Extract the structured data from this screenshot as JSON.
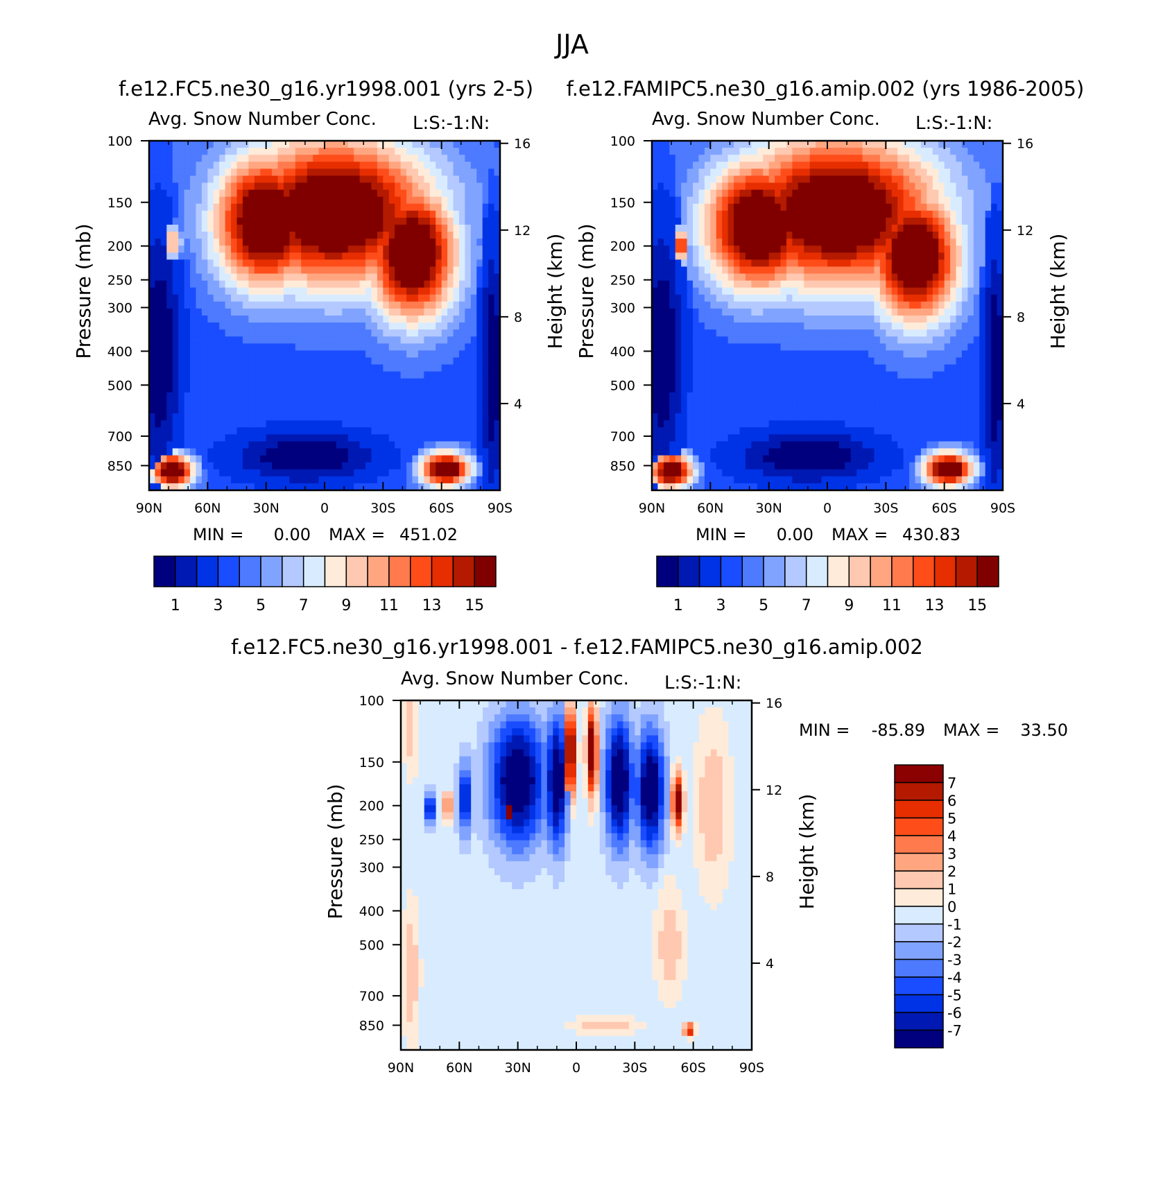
{
  "page_title": "JJA",
  "colors": {
    "abs_scale": [
      "#00007f",
      "#0019b3",
      "#0033e6",
      "#1a4dff",
      "#4d7aff",
      "#80a3ff",
      "#b3c9ff",
      "#d9ecff",
      "#ffebd9",
      "#ffc8b0",
      "#ffa680",
      "#ff7a4d",
      "#ff4d1a",
      "#e62e00",
      "#b31a00",
      "#800000"
    ],
    "diff_scale": [
      "#00007f",
      "#0019b3",
      "#0033e6",
      "#1a4dff",
      "#4d7aff",
      "#80a3ff",
      "#b3c9ff",
      "#d9ecff",
      "#ffebd9",
      "#ffc8b0",
      "#ffa680",
      "#ff7a4d",
      "#ff4d1a",
      "#e62e00",
      "#b31a00",
      "#8b0000"
    ],
    "axis": "#000000"
  },
  "chart_data": [
    {
      "id": "panel1",
      "type": "heatmap",
      "case_title": "f.e12.FC5.ne30_g16.yr1998.001 (yrs 2-5)",
      "variable": "Avg. Snow Number Conc.",
      "level_tag": "L:S:-1:N:",
      "xlabel": "",
      "ylabel": "Pressure (mb)",
      "y2label": "Height (km)",
      "x_ticks": [
        "90N",
        "60N",
        "30N",
        "0",
        "30S",
        "60S",
        "90S"
      ],
      "y_ticks": [
        "100",
        "150",
        "200",
        "250",
        "300",
        "400",
        "500",
        "700",
        "850"
      ],
      "y_tick_values": [
        100,
        150,
        200,
        250,
        300,
        400,
        500,
        700,
        850
      ],
      "y2_ticks": [
        "16",
        "12",
        "8",
        "4"
      ],
      "y2_tick_values": [
        16,
        12,
        8,
        4
      ],
      "x_range": [
        90,
        -90
      ],
      "y_range": [
        100,
        1000
      ],
      "min_label": "MIN =",
      "min_value": "0.00",
      "max_label": "MAX =",
      "max_value": "451.02",
      "colorbar_labels": [
        "1",
        "3",
        "5",
        "7",
        "9",
        "11",
        "13",
        "15"
      ],
      "field": {
        "blobs": [
          {
            "lat": -5,
            "p": 160,
            "lat_width": 58,
            "p_width": 90,
            "level": 15
          },
          {
            "lat": 30,
            "p": 170,
            "lat_width": 30,
            "p_width": 85,
            "level": 15
          },
          {
            "lat": -45,
            "p": 210,
            "lat_width": 26,
            "p_width": 105,
            "level": 15
          },
          {
            "lat": -62,
            "p": 870,
            "lat_width": 14,
            "p_width": 110,
            "level": 15
          },
          {
            "lat": 78,
            "p": 880,
            "lat_width": 12,
            "p_width": 110,
            "level": 15
          },
          {
            "lat": 78,
            "p": 195,
            "lat_width": 5,
            "p_width": 25,
            "level": 9
          }
        ],
        "background": [
          {
            "lat": 85,
            "p": 400,
            "lat_width": 12,
            "p_width": 350,
            "level": 0
          },
          {
            "lat": 10,
            "p": 800,
            "lat_width": 40,
            "p_width": 150,
            "level": 0
          },
          {
            "lat": -86,
            "p": 450,
            "lat_width": 6,
            "p_width": 400,
            "level": 0
          }
        ],
        "base_level": 3
      }
    },
    {
      "id": "panel2",
      "type": "heatmap",
      "case_title": "f.e12.FAMIPC5.ne30_g16.amip.002 (yrs 1986-2005)",
      "variable": "Avg. Snow Number Conc.",
      "level_tag": "L:S:-1:N:",
      "xlabel": "",
      "ylabel": "Pressure (mb)",
      "y2label": "Height (km)",
      "x_ticks": [
        "90N",
        "60N",
        "30N",
        "0",
        "30S",
        "60S",
        "90S"
      ],
      "y_ticks": [
        "100",
        "150",
        "200",
        "250",
        "300",
        "400",
        "500",
        "700",
        "850"
      ],
      "y_tick_values": [
        100,
        150,
        200,
        250,
        300,
        400,
        500,
        700,
        850
      ],
      "y2_ticks": [
        "16",
        "12",
        "8",
        "4"
      ],
      "y2_tick_values": [
        16,
        12,
        8,
        4
      ],
      "x_range": [
        90,
        -90
      ],
      "y_range": [
        100,
        1000
      ],
      "min_label": "MIN =",
      "min_value": "0.00",
      "max_label": "MAX =",
      "max_value": "430.83",
      "colorbar_labels": [
        "1",
        "3",
        "5",
        "7",
        "9",
        "11",
        "13",
        "15"
      ],
      "field": {
        "blobs": [
          {
            "lat": -5,
            "p": 160,
            "lat_width": 60,
            "p_width": 92,
            "level": 15
          },
          {
            "lat": 35,
            "p": 175,
            "lat_width": 32,
            "p_width": 85,
            "level": 15
          },
          {
            "lat": -45,
            "p": 215,
            "lat_width": 26,
            "p_width": 105,
            "level": 15
          },
          {
            "lat": -62,
            "p": 870,
            "lat_width": 14,
            "p_width": 110,
            "level": 15
          },
          {
            "lat": 80,
            "p": 880,
            "lat_width": 12,
            "p_width": 110,
            "level": 15
          },
          {
            "lat": 75,
            "p": 200,
            "lat_width": 4,
            "p_width": 25,
            "level": 12
          }
        ],
        "background": [
          {
            "lat": 85,
            "p": 400,
            "lat_width": 12,
            "p_width": 350,
            "level": 0
          },
          {
            "lat": 10,
            "p": 800,
            "lat_width": 40,
            "p_width": 150,
            "level": 0
          },
          {
            "lat": -86,
            "p": 450,
            "lat_width": 6,
            "p_width": 400,
            "level": 0
          }
        ],
        "base_level": 3
      }
    },
    {
      "id": "panel3",
      "type": "heatmap",
      "case_title": "f.e12.FC5.ne30_g16.yr1998.001 - f.e12.FAMIPC5.ne30_g16.amip.002",
      "variable": "Avg. Snow Number Conc.",
      "level_tag": "L:S:-1:N:",
      "xlabel": "",
      "ylabel": "Pressure (mb)",
      "y2label": "Height (km)",
      "x_ticks": [
        "90N",
        "60N",
        "30N",
        "0",
        "30S",
        "60S",
        "90S"
      ],
      "y_ticks": [
        "100",
        "150",
        "200",
        "250",
        "300",
        "400",
        "500",
        "700",
        "850"
      ],
      "y_tick_values": [
        100,
        150,
        200,
        250,
        300,
        400,
        500,
        700,
        850
      ],
      "y2_ticks": [
        "16",
        "12",
        "8",
        "4"
      ],
      "y2_tick_values": [
        16,
        12,
        8,
        4
      ],
      "x_range": [
        90,
        -90
      ],
      "y_range": [
        100,
        1000
      ],
      "min_label": "MIN =",
      "min_value": "-85.89",
      "max_label": "MAX =",
      "max_value": "33.50",
      "colorbar_labels": [
        "7",
        "6",
        "5",
        "4",
        "3",
        "2",
        "1",
        "0",
        "-1",
        "-2",
        "-3",
        "-4",
        "-5",
        "-6",
        "-7"
      ],
      "field": {
        "blobs": [
          {
            "lat": 30,
            "p": 170,
            "lat_width": 16,
            "p_width": 80,
            "level": -8
          },
          {
            "lat": 10,
            "p": 170,
            "lat_width": 6,
            "p_width": 80,
            "level": -8
          },
          {
            "lat": -22,
            "p": 170,
            "lat_width": 8,
            "p_width": 80,
            "level": -8
          },
          {
            "lat": -38,
            "p": 180,
            "lat_width": 8,
            "p_width": 80,
            "level": -8
          },
          {
            "lat": 57,
            "p": 190,
            "lat_width": 4,
            "p_width": 50,
            "level": -6
          },
          {
            "lat": 75,
            "p": 205,
            "lat_width": 3,
            "p_width": 25,
            "level": -6
          },
          {
            "lat": 3,
            "p": 140,
            "lat_width": 3,
            "p_width": 45,
            "level": 7
          },
          {
            "lat": -8,
            "p": 140,
            "lat_width": 3,
            "p_width": 45,
            "level": 7
          },
          {
            "lat": -52,
            "p": 195,
            "lat_width": 3,
            "p_width": 40,
            "level": 7
          },
          {
            "lat": 66,
            "p": 200,
            "lat_width": 2,
            "p_width": 20,
            "level": 4
          },
          {
            "lat": 35,
            "p": 210,
            "lat_width": 2,
            "p_width": 20,
            "level": 7
          },
          {
            "lat": -58,
            "p": 880,
            "lat_width": 3,
            "p_width": 40,
            "level": 5
          }
        ],
        "background": [
          {
            "lat": 85,
            "p": 120,
            "lat_width": 4,
            "p_width": 40,
            "level": 1
          },
          {
            "lat": 85,
            "p": 600,
            "lat_width": 5,
            "p_width": 300,
            "level": 1
          },
          {
            "lat": -48,
            "p": 500,
            "lat_width": 8,
            "p_width": 200,
            "level": 1
          },
          {
            "lat": -15,
            "p": 850,
            "lat_width": 20,
            "p_width": 50,
            "level": 1
          },
          {
            "lat": -70,
            "p": 200,
            "lat_width": 10,
            "p_width": 120,
            "level": 1
          }
        ],
        "base_level": -1
      }
    }
  ]
}
